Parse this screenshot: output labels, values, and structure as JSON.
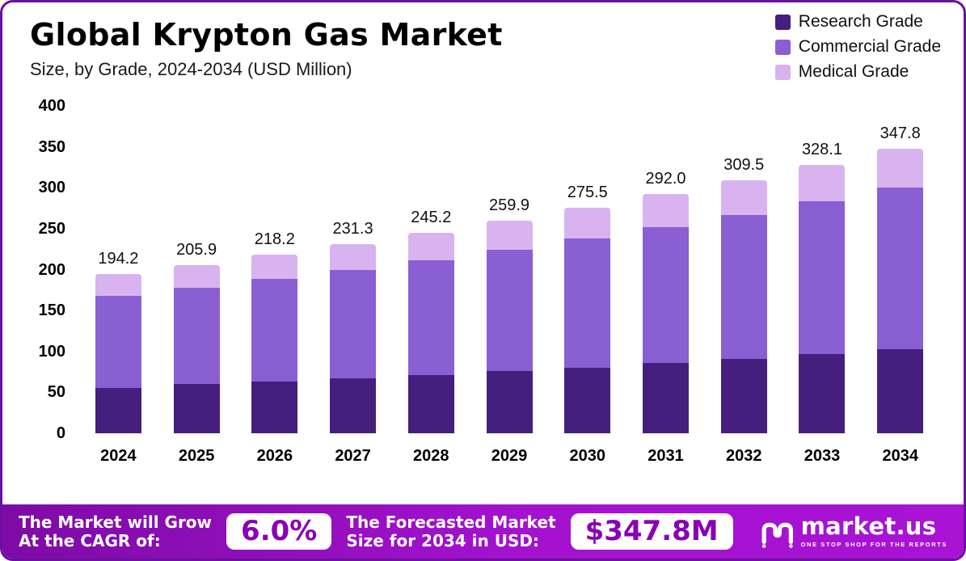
{
  "header": {
    "title": "Global Krypton Gas Market",
    "subtitle": "Size, by Grade, 2024-2034 (USD Million)"
  },
  "legend": [
    {
      "label": "Research Grade",
      "color": "#461e7d"
    },
    {
      "label": "Commercial Grade",
      "color": "#8a5fd3"
    },
    {
      "label": "Medical Grade",
      "color": "#d9b3f0"
    }
  ],
  "chart_data": {
    "type": "bar",
    "stacked": true,
    "title": "Global Krypton Gas Market Size, by Grade, 2024-2034 (USD Million)",
    "xlabel": "",
    "ylabel": "USD Million",
    "ylim": [
      0,
      400
    ],
    "yticks": [
      0,
      50,
      100,
      150,
      200,
      250,
      300,
      350,
      400
    ],
    "grid": false,
    "legend_position": "top-right",
    "categories": [
      "2024",
      "2025",
      "2026",
      "2027",
      "2028",
      "2029",
      "2030",
      "2031",
      "2032",
      "2033",
      "2034"
    ],
    "series": [
      {
        "name": "Research Grade",
        "color": "#461e7d",
        "values": [
          55.0,
          60.0,
          63.5,
          67.0,
          71.0,
          76.0,
          80.0,
          85.5,
          91.0,
          97.0,
          103.0
        ]
      },
      {
        "name": "Commercial Grade",
        "color": "#8a5fd3",
        "values": [
          112.9,
          117.9,
          124.7,
          132.8,
          140.7,
          148.4,
          158.0,
          166.5,
          176.0,
          186.1,
          197.3
        ]
      },
      {
        "name": "Medical Grade",
        "color": "#d9b3f0",
        "values": [
          26.3,
          28.0,
          30.0,
          31.5,
          33.5,
          35.5,
          37.5,
          40.0,
          42.5,
          45.0,
          47.5
        ]
      }
    ],
    "totals": [
      "194.2",
      "205.9",
      "218.2",
      "231.3",
      "245.2",
      "259.9",
      "275.5",
      "292.0",
      "309.5",
      "328.1",
      "347.8"
    ]
  },
  "footer": {
    "cagr_label_line1": "The Market will Grow",
    "cagr_label_line2": "At the CAGR of:",
    "cagr_value": "6.0%",
    "forecast_label_line1": "The Forecasted Market",
    "forecast_label_line2": "Size for 2034 in USD:",
    "forecast_value": "$347.8M",
    "brand": "market.us",
    "brand_tagline": "ONE STOP SHOP FOR THE REPORTS"
  }
}
